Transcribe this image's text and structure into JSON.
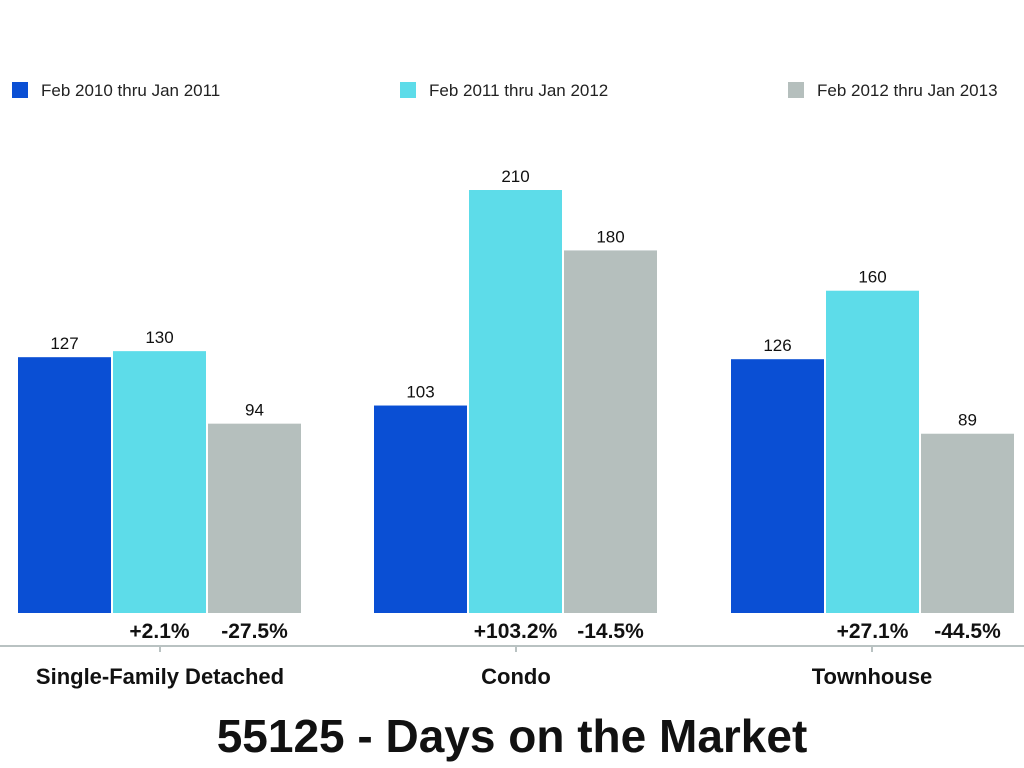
{
  "chart_data": {
    "type": "bar",
    "title": "55125 - Days on the Market",
    "categories": [
      "Single-Family Detached",
      "Condo",
      "Townhouse"
    ],
    "series": [
      {
        "name": "Feb 2010 thru Jan 2011",
        "color": "#0a4fd4",
        "values": [
          127,
          103,
          126
        ]
      },
      {
        "name": "Feb 2011 thru Jan 2012",
        "color": "#5ddce9",
        "values": [
          130,
          210,
          160
        ]
      },
      {
        "name": "Feb 2012 thru Jan 2013",
        "color": "#b5bfbd",
        "values": [
          94,
          180,
          89
        ]
      }
    ],
    "changes": [
      [
        "+2.1%",
        "-27.5%"
      ],
      [
        "+103.2%",
        "-14.5%"
      ],
      [
        "+27.1%",
        "-44.5%"
      ]
    ],
    "ylim": [
      0,
      225
    ],
    "grid": false,
    "legend_position": "top"
  }
}
